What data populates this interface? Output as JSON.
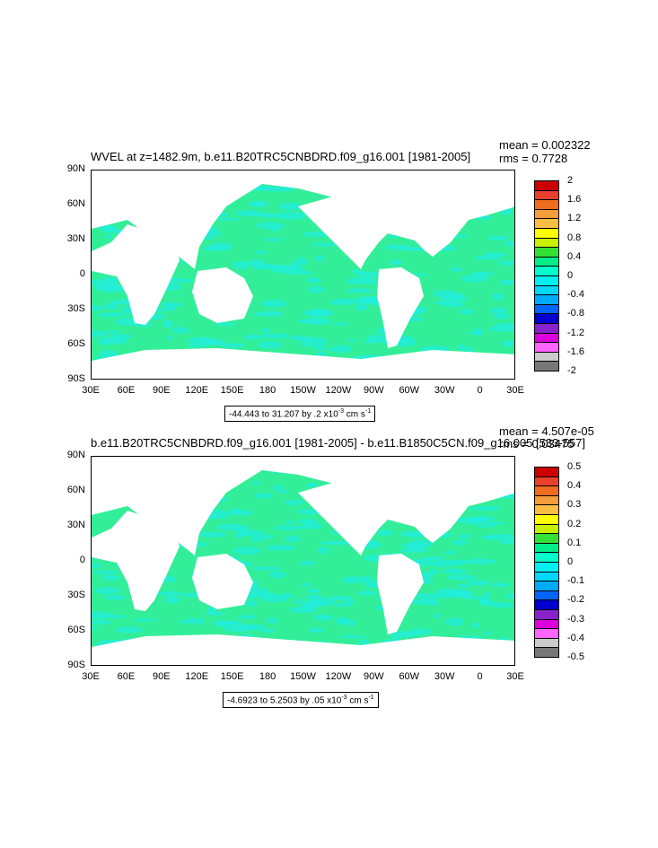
{
  "panels": [
    {
      "title": "WVEL at z=1482.9m, b.e11.B20TRC5CNBDRD.f09_g16.001 [1981-2005]",
      "mean": "mean = 0.002322",
      "rms": "rms = 0.7728",
      "range_text": "-44.443 to 31.207 by .2 x10",
      "range_exp": "-3",
      "range_unit": " cm s",
      "range_unit_exp": "-1",
      "lat_labels": [
        "90N",
        "60N",
        "30N",
        "0",
        "30S",
        "60S",
        "90S"
      ],
      "lon_labels": [
        "30E",
        "60E",
        "90E",
        "120E",
        "150E",
        "180",
        "150W",
        "120W",
        "90W",
        "60W",
        "30W",
        "0",
        "30E"
      ],
      "colorbar_labels": [
        "2",
        "1.6",
        "1.2",
        "0.8",
        "0.4",
        "0",
        "-0.4",
        "-0.8",
        "-1.2",
        "-1.6",
        "-2"
      ],
      "colorbar_colors": [
        "#cc0000",
        "#e8402a",
        "#f06c1e",
        "#f59c3a",
        "#fbbd42",
        "#ffff00",
        "#c8f000",
        "#33e033",
        "#00ee88",
        "#00ffcc",
        "#00f0f0",
        "#00d8ff",
        "#00aaff",
        "#0066ff",
        "#0000d0",
        "#8822cc",
        "#dd00dd",
        "#ff66ff",
        "#cccccc",
        "#777777"
      ]
    },
    {
      "title": "b.e11.B20TRC5CNBDRD.f09_g16.001 [1981-2005] - b.e11.B1850C5CN.f09_g16.005 [533-557]",
      "mean": "mean = 4.507e-05",
      "rms": "rms = 0.03475",
      "range_text": "-4.6923 to 5.2503 by .05 x10",
      "range_exp": "-3",
      "range_unit": " cm s",
      "range_unit_exp": "-1",
      "lat_labels": [
        "90N",
        "60N",
        "30N",
        "0",
        "30S",
        "60S",
        "90S"
      ],
      "lon_labels": [
        "30E",
        "60E",
        "90E",
        "120E",
        "150E",
        "180",
        "150W",
        "120W",
        "90W",
        "60W",
        "30W",
        "0",
        "30E"
      ],
      "colorbar_labels": [
        "0.5",
        "0.4",
        "0.3",
        "0.2",
        "0.1",
        "0",
        "-0.1",
        "-0.2",
        "-0.3",
        "-0.4",
        "-0.5"
      ],
      "colorbar_colors": [
        "#cc0000",
        "#e8402a",
        "#f06c1e",
        "#f59c3a",
        "#fbbd42",
        "#ffff00",
        "#c8f000",
        "#33e033",
        "#00ee88",
        "#00ffcc",
        "#00f0f0",
        "#00d8ff",
        "#00aaff",
        "#0066ff",
        "#0000d0",
        "#8822cc",
        "#dd00dd",
        "#ff66ff",
        "#cccccc",
        "#777777"
      ]
    }
  ],
  "ocean_color": "#33ee99",
  "ocean_color_2": "#22eedd"
}
